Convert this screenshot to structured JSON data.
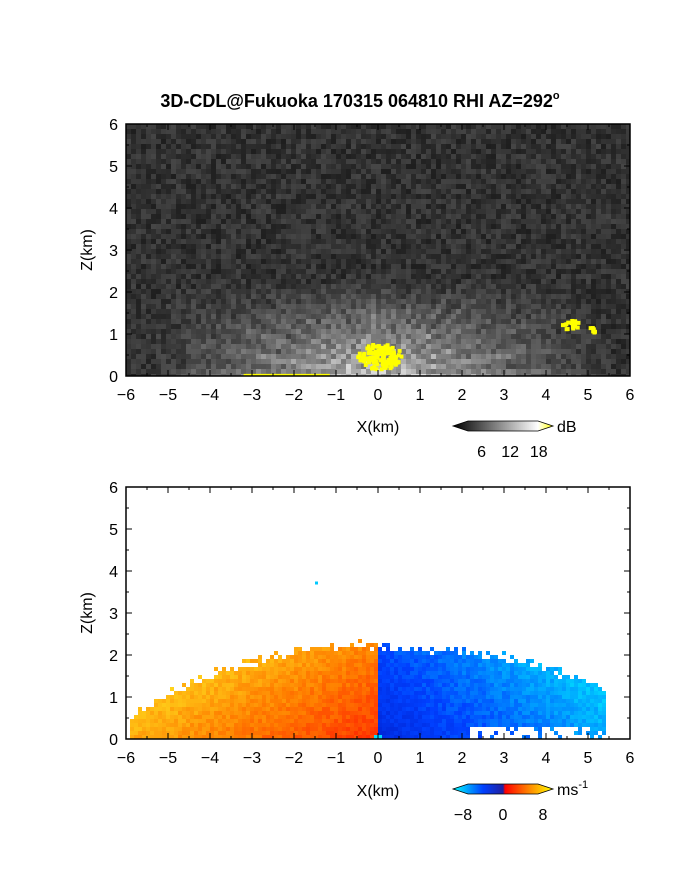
{
  "title": "3D-CDL@Fukuoka 170315 064810 RHI AZ=292",
  "title_superscript": "o",
  "chart_data": [
    {
      "type": "heatmap",
      "panel": "reflectivity",
      "xlabel": "X(km)",
      "ylabel": "Z(km)",
      "xlim": [
        -6,
        6
      ],
      "ylim": [
        0,
        6
      ],
      "x_ticks": [
        "-6",
        "-5",
        "-4",
        "-3",
        "-2",
        "-1",
        "0",
        "1",
        "2",
        "3",
        "4",
        "5",
        "6"
      ],
      "y_ticks": [
        "0",
        "1",
        "2",
        "3",
        "4",
        "5",
        "6"
      ],
      "colorbar": {
        "unit": "dB",
        "ticks": [
          "6",
          "12",
          "18"
        ],
        "range": [
          0,
          21
        ],
        "colors": [
          "#000000",
          "#ffffff",
          "#ffff00"
        ]
      },
      "background_color": "#2a2a2a",
      "echo_max_height_km": 2.3,
      "yellow_patches": [
        {
          "x": 0.0,
          "z": 0.5,
          "label": "near-origin >18 dB"
        },
        {
          "x": 4.55,
          "z": 1.25,
          "label": "cloud feature"
        },
        {
          "x": 5.1,
          "z": 1.15,
          "label": "cloud feature"
        }
      ]
    },
    {
      "type": "heatmap",
      "panel": "radial_velocity",
      "xlabel": "X(km)",
      "ylabel": "Z(km)",
      "xlim": [
        -6,
        6
      ],
      "ylim": [
        0,
        6
      ],
      "x_ticks": [
        "-6",
        "-5",
        "-4",
        "-3",
        "-2",
        "-1",
        "0",
        "1",
        "2",
        "3",
        "4",
        "5",
        "6"
      ],
      "y_ticks": [
        "0",
        "1",
        "2",
        "3",
        "4",
        "5",
        "6"
      ],
      "colorbar": {
        "unit": "ms",
        "unit_exp": "-1",
        "ticks": [
          "−8",
          "0",
          "8"
        ],
        "range": [
          -10,
          10
        ],
        "colors": [
          "#00ffff",
          "#0040ff",
          "#ff0000",
          "#ffff00"
        ]
      },
      "left_side_velocity_ms": [
        0,
        8
      ],
      "right_side_velocity_ms": [
        -8,
        0
      ],
      "echo_max_height_km": 2.4,
      "isolated_point": {
        "x": -1.5,
        "z": 3.75
      }
    }
  ]
}
